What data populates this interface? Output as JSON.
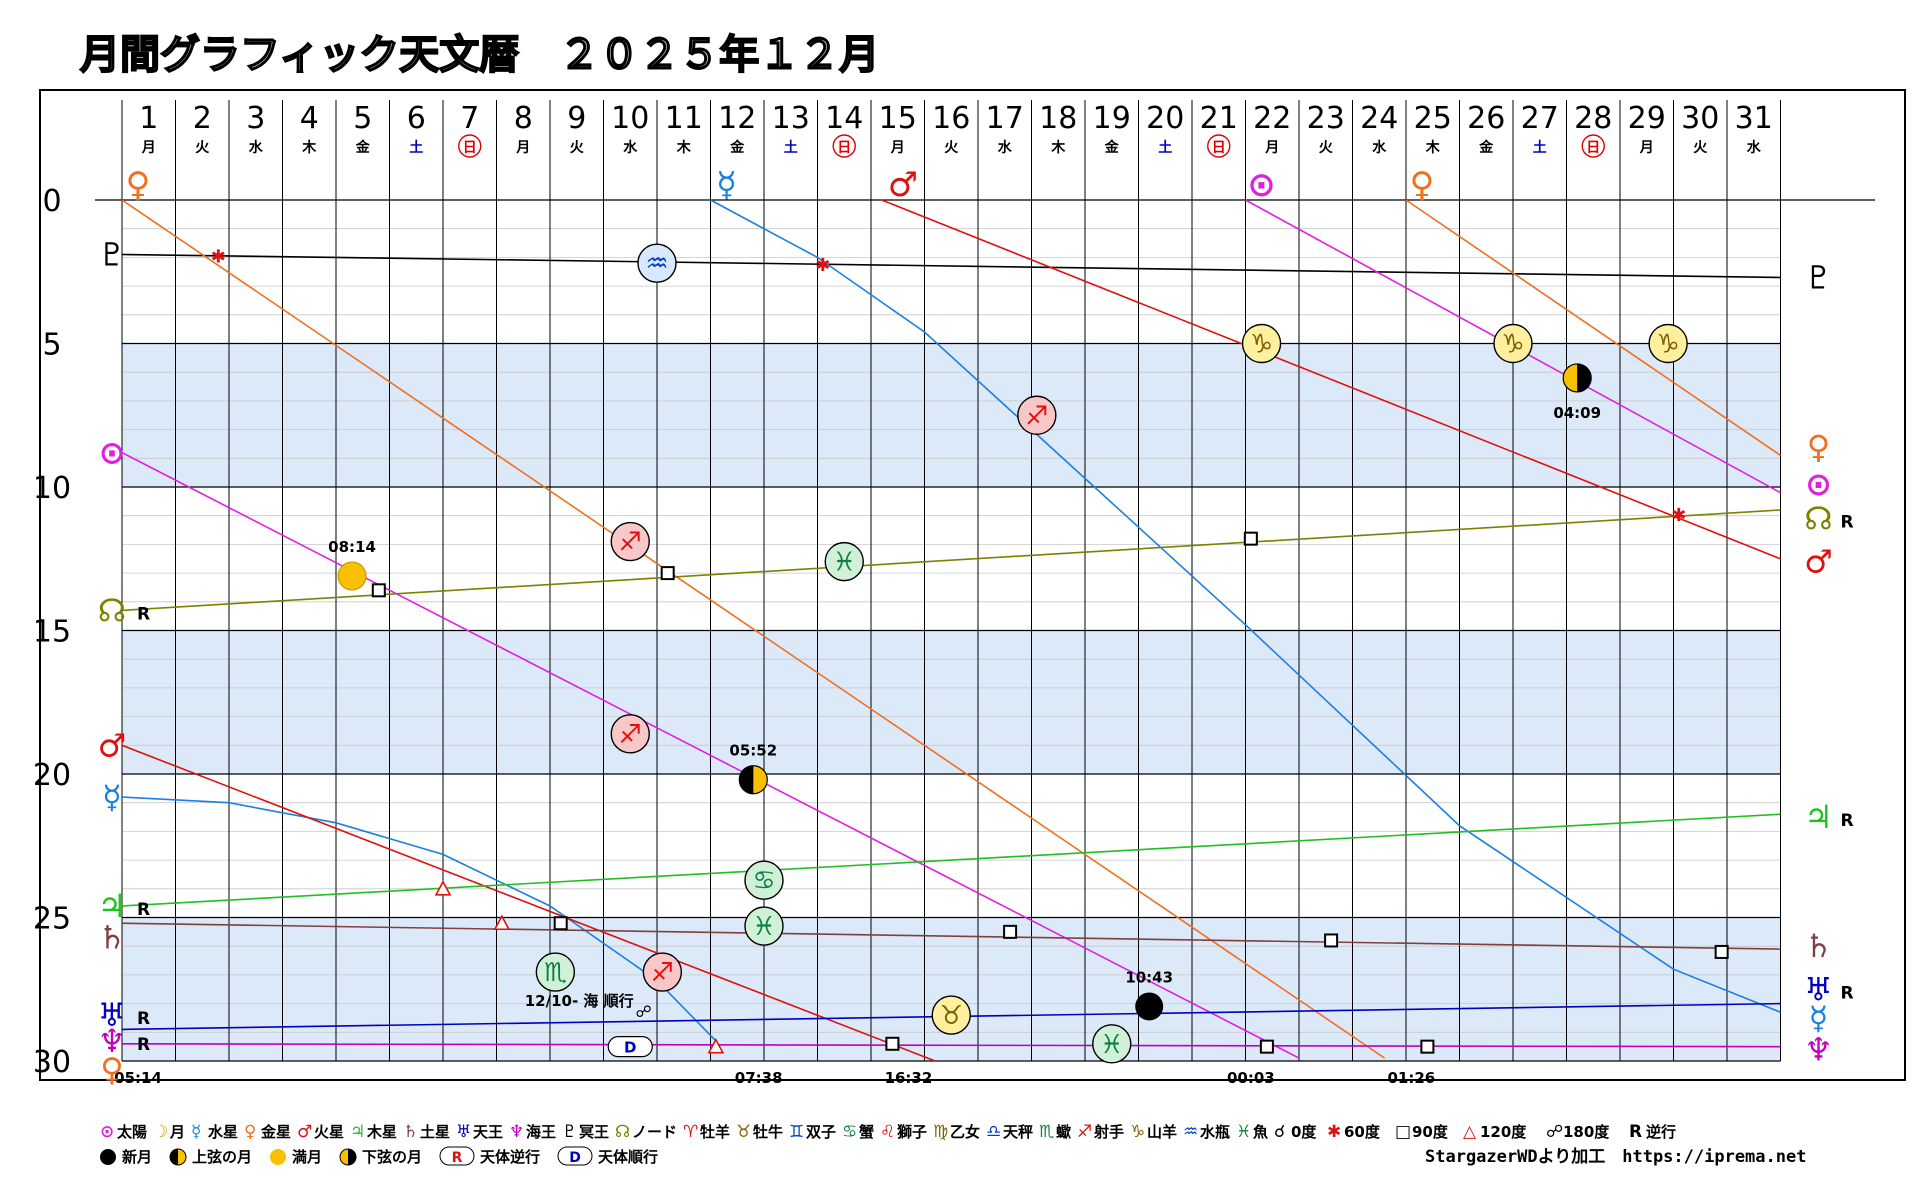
{
  "title": "月間グラフィック天文暦　２０２５年１２月",
  "credit": "StargazerWDより加工　https://iprema.net",
  "colors": {
    "sun": "#e020e0",
    "moon": "#e0a000",
    "mercury": "#1a80e0",
    "venus": "#f07020",
    "mars": "#e01010",
    "jupiter": "#20c020",
    "saturn": "#804040",
    "uranus": "#0000c0",
    "neptune": "#c000c0",
    "pluto": "#000000",
    "node": "#808000",
    "band": "#dce9f8",
    "grid": "#000000",
    "saturday": "#0000c0",
    "sunday": "#e00000"
  },
  "chart_data": {
    "type": "line",
    "x_label": "",
    "y_label": "",
    "xlim": [
      1,
      32
    ],
    "ylim": [
      0,
      30
    ],
    "y_ticks": [
      "0",
      "5",
      "10",
      "15",
      "20",
      "25",
      "30"
    ],
    "days": [
      {
        "d": "1",
        "w": "月"
      },
      {
        "d": "2",
        "w": "火"
      },
      {
        "d": "3",
        "w": "水"
      },
      {
        "d": "4",
        "w": "木"
      },
      {
        "d": "5",
        "w": "金"
      },
      {
        "d": "6",
        "w": "土"
      },
      {
        "d": "7",
        "w": "日"
      },
      {
        "d": "8",
        "w": "月"
      },
      {
        "d": "9",
        "w": "火"
      },
      {
        "d": "10",
        "w": "水"
      },
      {
        "d": "11",
        "w": "木"
      },
      {
        "d": "12",
        "w": "金"
      },
      {
        "d": "13",
        "w": "土"
      },
      {
        "d": "14",
        "w": "日"
      },
      {
        "d": "15",
        "w": "月"
      },
      {
        "d": "16",
        "w": "火"
      },
      {
        "d": "17",
        "w": "水"
      },
      {
        "d": "18",
        "w": "木"
      },
      {
        "d": "19",
        "w": "金"
      },
      {
        "d": "20",
        "w": "土"
      },
      {
        "d": "21",
        "w": "日"
      },
      {
        "d": "22",
        "w": "月"
      },
      {
        "d": "23",
        "w": "火"
      },
      {
        "d": "24",
        "w": "水"
      },
      {
        "d": "25",
        "w": "木"
      },
      {
        "d": "26",
        "w": "金"
      },
      {
        "d": "27",
        "w": "土"
      },
      {
        "d": "28",
        "w": "日"
      },
      {
        "d": "29",
        "w": "月"
      },
      {
        "d": "30",
        "w": "火"
      },
      {
        "d": "31",
        "w": "水"
      }
    ],
    "series": [
      {
        "key": "pluto",
        "color": "#000000",
        "pts": [
          [
            1,
            1.9
          ],
          [
            32,
            2.7
          ]
        ]
      },
      {
        "key": "sun",
        "color": "#e020e0",
        "pts": [
          [
            1,
            8.8
          ],
          [
            23,
            29.9
          ]
        ]
      },
      {
        "key": "sun",
        "color": "#e020e0",
        "pts": [
          [
            22,
            0
          ],
          [
            32,
            10.2
          ]
        ]
      },
      {
        "key": "venus",
        "color": "#f07020",
        "pts": [
          [
            1,
            0
          ],
          [
            24.6,
            29.9
          ]
        ]
      },
      {
        "key": "venus",
        "color": "#f07020",
        "pts": [
          [
            25,
            0
          ],
          [
            32,
            8.9
          ]
        ]
      },
      {
        "key": "mercury",
        "color": "#1a80e0",
        "pts": [
          [
            1,
            20.8
          ],
          [
            3,
            21.0
          ],
          [
            5,
            21.7
          ],
          [
            7,
            22.8
          ],
          [
            9,
            24.6
          ],
          [
            11,
            27.2
          ],
          [
            12.1,
            29.3
          ]
        ]
      },
      {
        "key": "mercury",
        "color": "#1a80e0",
        "pts": [
          [
            12,
            0
          ],
          [
            14,
            2.0
          ],
          [
            16,
            4.6
          ],
          [
            18,
            8
          ],
          [
            22,
            14.8
          ],
          [
            26,
            21.8
          ],
          [
            30,
            26.8
          ],
          [
            32,
            28.3
          ]
        ]
      },
      {
        "key": "mars",
        "color": "#e01010",
        "pts": [
          [
            1,
            19.0
          ],
          [
            16.2,
            30
          ]
        ]
      },
      {
        "key": "mars",
        "color": "#e01010",
        "pts": [
          [
            15.2,
            0
          ],
          [
            32,
            12.5
          ]
        ]
      },
      {
        "key": "node",
        "color": "#808000",
        "pts": [
          [
            1,
            14.3
          ],
          [
            32,
            10.8
          ]
        ]
      },
      {
        "key": "jupiter",
        "color": "#20c020",
        "pts": [
          [
            1,
            24.6
          ],
          [
            32,
            21.4
          ]
        ]
      },
      {
        "key": "saturn",
        "color": "#804040",
        "pts": [
          [
            1,
            25.2
          ],
          [
            32,
            26.1
          ]
        ]
      },
      {
        "key": "uranus",
        "color": "#0000c0",
        "pts": [
          [
            1,
            28.9
          ],
          [
            32,
            28.0
          ]
        ]
      },
      {
        "key": "neptune",
        "color": "#c000c0",
        "pts": [
          [
            1,
            29.4
          ],
          [
            32,
            29.5
          ]
        ]
      }
    ],
    "sign_markers": [
      {
        "sym": "♒",
        "x": 11,
        "y": 2.2,
        "bg": "#d8e8ff",
        "fg": "#0040c0"
      },
      {
        "sym": "♑",
        "x": 22.3,
        "y": 5.0,
        "bg": "#fff0a0",
        "fg": "#806000"
      },
      {
        "sym": "♑",
        "x": 27,
        "y": 5.0,
        "bg": "#fff0a0",
        "fg": "#806000"
      },
      {
        "sym": "♑",
        "x": 29.9,
        "y": 5.0,
        "bg": "#fff0a0",
        "fg": "#806000"
      },
      {
        "sym": "♐",
        "x": 18.1,
        "y": 7.5,
        "bg": "#f8c8c8",
        "fg": "#e01010"
      },
      {
        "sym": "♐",
        "x": 10.5,
        "y": 11.9,
        "bg": "#f8c8c8",
        "fg": "#e01010"
      },
      {
        "sym": "♓",
        "x": 14.5,
        "y": 12.6,
        "bg": "#d0f0d8",
        "fg": "#108040"
      },
      {
        "sym": "♐",
        "x": 10.5,
        "y": 18.6,
        "bg": "#f8c8c8",
        "fg": "#e01010"
      },
      {
        "sym": "♋",
        "x": 13,
        "y": 23.7,
        "bg": "#d0f0d8",
        "fg": "#108040"
      },
      {
        "sym": "♓",
        "x": 13,
        "y": 25.3,
        "bg": "#d0f0d8",
        "fg": "#108040"
      },
      {
        "sym": "♏",
        "x": 9.1,
        "y": 26.9,
        "bg": "#d0f0d8",
        "fg": "#108040"
      },
      {
        "sym": "♐",
        "x": 11.1,
        "y": 26.9,
        "bg": "#f8c8c8",
        "fg": "#e01010"
      },
      {
        "sym": "♉",
        "x": 16.5,
        "y": 28.4,
        "bg": "#fff0a0",
        "fg": "#806000"
      },
      {
        "sym": "♓",
        "x": 19.5,
        "y": 29.4,
        "bg": "#d0f0d8",
        "fg": "#108040"
      }
    ],
    "moon_phases": [
      {
        "phase": "full",
        "x": 5.3,
        "y": 13.1,
        "time": "08:14"
      },
      {
        "phase": "first",
        "x": 12.8,
        "y": 20.2,
        "time": "05:52"
      },
      {
        "phase": "new",
        "x": 20.2,
        "y": 28.1,
        "time": "10:43"
      },
      {
        "phase": "last",
        "x": 28.2,
        "y": 6.2,
        "time": "04:09"
      }
    ],
    "aspects": [
      {
        "type": "sextile",
        "x": 2.8,
        "y": 1.9
      },
      {
        "type": "sextile",
        "x": 14.1,
        "y": 2.2
      },
      {
        "type": "sextile",
        "x": 30.1,
        "y": 10.9
      },
      {
        "type": "square",
        "x": 5.8,
        "y": 13.6
      },
      {
        "type": "square",
        "x": 11.2,
        "y": 13.0
      },
      {
        "type": "square",
        "x": 22.1,
        "y": 11.8
      },
      {
        "type": "square",
        "x": 9.2,
        "y": 25.2
      },
      {
        "type": "square",
        "x": 17.6,
        "y": 25.5
      },
      {
        "type": "square",
        "x": 23.6,
        "y": 25.8
      },
      {
        "type": "square",
        "x": 30.9,
        "y": 26.2
      },
      {
        "type": "square",
        "x": 15.4,
        "y": 29.4
      },
      {
        "type": "square",
        "x": 22.4,
        "y": 29.5
      },
      {
        "type": "square",
        "x": 25.4,
        "y": 29.5
      },
      {
        "type": "trine",
        "x": 7.0,
        "y": 24.0
      },
      {
        "type": "trine",
        "x": 8.1,
        "y": 25.2
      },
      {
        "type": "trine",
        "x": 12.1,
        "y": 29.5
      }
    ],
    "opposition_note": {
      "text": "12/10- 海 順行",
      "x": 10.75,
      "y": 28.3
    },
    "direct_marker": {
      "sym": "D",
      "x": 10.5,
      "y": 29.5
    },
    "time_labels": [
      {
        "text": "05:14",
        "x": 1.3
      },
      {
        "text": "07:38",
        "x": 12.9
      },
      {
        "text": "16:32",
        "x": 15.7
      },
      {
        "text": "00:03",
        "x": 22.1
      },
      {
        "text": "01:26",
        "x": 25.1
      }
    ],
    "top_planet_labels": [
      {
        "sym": "♀",
        "x": 1,
        "key": "venus"
      },
      {
        "sym": "☿",
        "x": 12,
        "key": "mercury"
      },
      {
        "sym": "♂",
        "x": 15.3,
        "key": "mars"
      },
      {
        "sym": "⊙",
        "x": 22,
        "key": "sun"
      },
      {
        "sym": "♀",
        "x": 25,
        "key": "venus"
      }
    ],
    "left_labels": [
      {
        "sym": "♇",
        "y": 1.9,
        "key": "pluto",
        "r": ""
      },
      {
        "sym": "⊙",
        "y": 8.8,
        "key": "sun",
        "r": ""
      },
      {
        "sym": "☊",
        "y": 14.3,
        "key": "node",
        "r": "R"
      },
      {
        "sym": "♂",
        "y": 19.0,
        "key": "mars",
        "r": ""
      },
      {
        "sym": "☿",
        "y": 20.8,
        "key": "mercury",
        "r": ""
      },
      {
        "sym": "♃",
        "y": 24.6,
        "key": "jupiter",
        "r": "R"
      },
      {
        "sym": "♄",
        "y": 25.7,
        "key": "saturn",
        "r": ""
      },
      {
        "sym": "♅",
        "y": 28.4,
        "key": "uranus",
        "r": "R"
      },
      {
        "sym": "♆",
        "y": 29.3,
        "key": "neptune",
        "r": "R"
      },
      {
        "sym": "♀",
        "y": 30.3,
        "key": "venus",
        "r": ""
      }
    ],
    "right_labels": [
      {
        "sym": "♇",
        "y": 2.7,
        "key": "pluto",
        "r": ""
      },
      {
        "sym": "♀",
        "y": 8.6,
        "key": "venus",
        "r": ""
      },
      {
        "sym": "⊙",
        "y": 9.9,
        "key": "sun",
        "r": ""
      },
      {
        "sym": "☊",
        "y": 11.1,
        "key": "node",
        "r": "R"
      },
      {
        "sym": "♂",
        "y": 12.6,
        "key": "mars",
        "r": ""
      },
      {
        "sym": "♃",
        "y": 21.5,
        "key": "jupiter",
        "r": "R"
      },
      {
        "sym": "♄",
        "y": 26.0,
        "key": "saturn",
        "r": ""
      },
      {
        "sym": "♅",
        "y": 27.5,
        "key": "uranus",
        "r": "R"
      },
      {
        "sym": "☿",
        "y": 28.5,
        "key": "mercury",
        "r": ""
      },
      {
        "sym": "♆",
        "y": 29.6,
        "key": "neptune",
        "r": ""
      }
    ]
  },
  "legend": {
    "row1": [
      {
        "sym": "⊙",
        "color": "#e020e0",
        "label": "太陽"
      },
      {
        "sym": "☽",
        "color": "#e0a000",
        "label": "月"
      },
      {
        "sym": "☿",
        "color": "#1a80e0",
        "label": "水星"
      },
      {
        "sym": "♀",
        "color": "#f07020",
        "label": "金星"
      },
      {
        "sym": "♂",
        "color": "#e01010",
        "label": "火星"
      },
      {
        "sym": "♃",
        "color": "#20c020",
        "label": "木星"
      },
      {
        "sym": "♄",
        "color": "#804040",
        "label": "土星"
      },
      {
        "sym": "♅",
        "color": "#0000c0",
        "label": "天王"
      },
      {
        "sym": "♆",
        "color": "#c000c0",
        "label": "海王"
      },
      {
        "sym": "♇",
        "color": "#000000",
        "label": "冥王"
      },
      {
        "sym": "☊",
        "color": "#808000",
        "label": "ノード"
      },
      {
        "sym": "♈",
        "color": "#e01010",
        "label": "牡羊"
      },
      {
        "sym": "♉",
        "color": "#806000",
        "label": "牡牛"
      },
      {
        "sym": "♊",
        "color": "#0040c0",
        "label": "双子"
      },
      {
        "sym": "♋",
        "color": "#108040",
        "label": "蟹"
      },
      {
        "sym": "♌",
        "color": "#e01010",
        "label": "獅子"
      },
      {
        "sym": "♍",
        "color": "#806000",
        "label": "乙女"
      },
      {
        "sym": "♎",
        "color": "#0040c0",
        "label": "天秤"
      },
      {
        "sym": "♏",
        "color": "#108040",
        "label": "蠍"
      },
      {
        "sym": "♐",
        "color": "#e01010",
        "label": "射手"
      },
      {
        "sym": "♑",
        "color": "#806000",
        "label": "山羊"
      },
      {
        "sym": "♒",
        "color": "#0040c0",
        "label": "水瓶"
      },
      {
        "sym": "♓",
        "color": "#108040",
        "label": "魚"
      },
      {
        "sym": "☌",
        "color": "#000000",
        "label": "0度"
      },
      {
        "sym": "✱",
        "color": "#e01010",
        "label": "60度"
      },
      {
        "sym": "□",
        "color": "#000000",
        "label": "90度"
      },
      {
        "sym": "△",
        "color": "#e01010",
        "label": "120度"
      },
      {
        "sym": "☍",
        "color": "#000000",
        "label": "180度"
      },
      {
        "sym": "R",
        "color": "#000000",
        "label": "逆行"
      }
    ],
    "row2": [
      {
        "sym": "new",
        "label": "新月"
      },
      {
        "sym": "first",
        "label": "上弦の月"
      },
      {
        "sym": "full",
        "label": "満月"
      },
      {
        "sym": "last",
        "label": "下弦の月"
      },
      {
        "sym": "R",
        "label": "天体逆行"
      },
      {
        "sym": "D",
        "label": "天体順行"
      }
    ]
  }
}
